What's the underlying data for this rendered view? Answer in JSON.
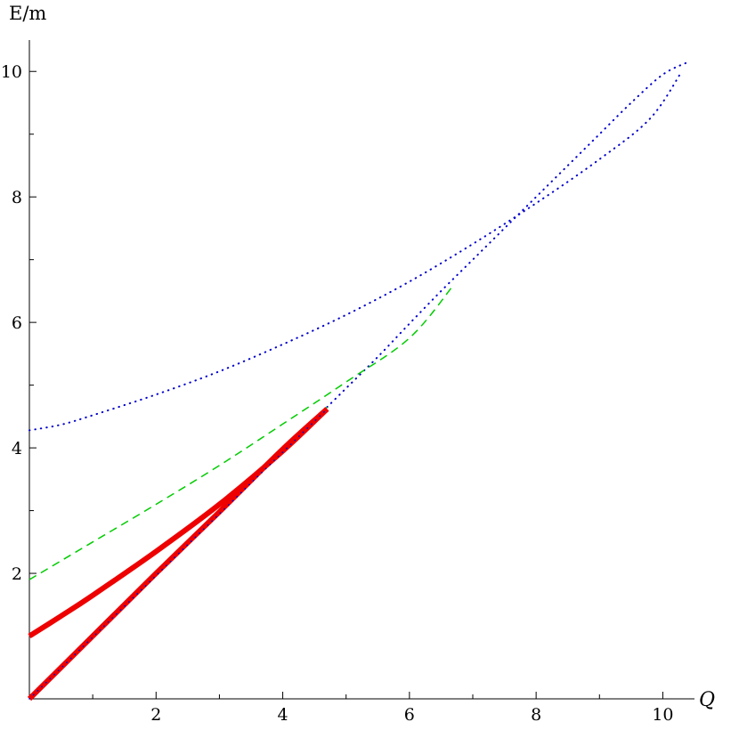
{
  "chart_data": {
    "type": "line",
    "title": "",
    "xlabel": "Q",
    "ylabel": "E/m",
    "xlim": [
      0,
      10.5
    ],
    "ylim": [
      0,
      10.5
    ],
    "x_ticks_major": [
      2,
      4,
      6,
      8,
      10
    ],
    "x_ticks_minor": [
      1,
      3,
      5,
      7,
      9
    ],
    "y_ticks_major": [
      2,
      4,
      6,
      8,
      10
    ],
    "y_ticks_minor": [
      1,
      3,
      5,
      7,
      9
    ],
    "grid": false,
    "legend": "none",
    "series": [
      {
        "style": "dotted",
        "color": "#0000cc",
        "width": 2,
        "points": [
          [
            0,
            4.28
          ],
          [
            0.5,
            4.37
          ],
          [
            1,
            4.52
          ],
          [
            2,
            4.85
          ],
          [
            3,
            5.22
          ],
          [
            4,
            5.65
          ],
          [
            5,
            6.12
          ],
          [
            6,
            6.65
          ],
          [
            7,
            7.25
          ],
          [
            8,
            7.9
          ],
          [
            9,
            8.6
          ],
          [
            9.8,
            9.25
          ],
          [
            10.3,
            10.0
          ]
        ]
      },
      {
        "style": "dotted",
        "color": "#0000cc",
        "width": 2,
        "points": [
          [
            4.7,
            4.65
          ],
          [
            5,
            4.95
          ],
          [
            5.5,
            5.45
          ],
          [
            6,
            5.98
          ],
          [
            6.5,
            6.5
          ],
          [
            7,
            7.0
          ],
          [
            7.5,
            7.5
          ],
          [
            8,
            8.0
          ],
          [
            8.5,
            8.5
          ],
          [
            9,
            9.0
          ],
          [
            9.5,
            9.5
          ],
          [
            10,
            9.95
          ],
          [
            10.4,
            10.15
          ]
        ]
      },
      {
        "style": "dashed",
        "color": "#00cc00",
        "width": 1.5,
        "points": [
          [
            0,
            1.9
          ],
          [
            0.5,
            2.2
          ],
          [
            1,
            2.5
          ],
          [
            2,
            3.1
          ],
          [
            3,
            3.72
          ],
          [
            4,
            4.38
          ],
          [
            5,
            5.05
          ],
          [
            6,
            5.75
          ],
          [
            6.7,
            6.6
          ]
        ]
      },
      {
        "style": "dashed",
        "color": "#00cc00",
        "width": 1.5,
        "points": [
          [
            0,
            0
          ],
          [
            4.7,
            4.65
          ]
        ]
      },
      {
        "style": "solid",
        "color": "#ee0000",
        "width": 6,
        "points": [
          [
            0,
            1.0
          ],
          [
            0.5,
            1.32
          ],
          [
            1,
            1.65
          ],
          [
            2,
            2.35
          ],
          [
            3,
            3.1
          ],
          [
            4,
            3.95
          ],
          [
            4.7,
            4.62
          ]
        ]
      },
      {
        "style": "solid",
        "color": "#ee0000",
        "width": 6,
        "points": [
          [
            0,
            0
          ],
          [
            1,
            1.0
          ],
          [
            2,
            2.0
          ],
          [
            3,
            2.98
          ],
          [
            4,
            3.98
          ],
          [
            4.7,
            4.62
          ]
        ]
      },
      {
        "style": "dotted",
        "color": "#0000cc",
        "width": 1.5,
        "points": [
          [
            0,
            0
          ],
          [
            4.7,
            4.62
          ]
        ]
      }
    ]
  }
}
